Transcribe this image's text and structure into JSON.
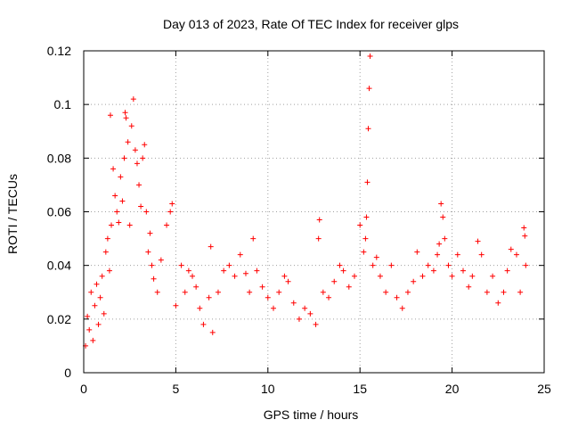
{
  "chart_data": {
    "type": "scatter",
    "title": "Day 013 of 2023, Rate Of TEC Index for receiver glps",
    "xlabel": "GPS time / hours",
    "ylabel": "ROTI / TECUs",
    "xlim": [
      0,
      25
    ],
    "ylim": [
      0,
      0.12
    ],
    "x_ticks": [
      0,
      5,
      10,
      15,
      20,
      25
    ],
    "x_tick_labels": [
      "0",
      "5",
      "10",
      "15",
      "20",
      "25"
    ],
    "y_ticks": [
      0,
      0.02,
      0.04,
      0.06,
      0.08,
      0.1,
      0.12
    ],
    "y_tick_labels": [
      "0",
      "0.02",
      "0.04",
      "0.06",
      "0.08",
      "0.1",
      "0.12"
    ],
    "grid": true,
    "marker": "+",
    "color": "#ff0000",
    "series": [
      {
        "name": "ROTI",
        "points": [
          [
            0.1,
            0.01
          ],
          [
            0.2,
            0.021
          ],
          [
            0.3,
            0.016
          ],
          [
            0.4,
            0.03
          ],
          [
            0.5,
            0.012
          ],
          [
            0.6,
            0.025
          ],
          [
            0.7,
            0.033
          ],
          [
            0.8,
            0.018
          ],
          [
            0.9,
            0.028
          ],
          [
            1.0,
            0.036
          ],
          [
            1.1,
            0.022
          ],
          [
            1.2,
            0.045
          ],
          [
            1.3,
            0.05
          ],
          [
            1.4,
            0.038
          ],
          [
            1.45,
            0.096
          ],
          [
            1.5,
            0.055
          ],
          [
            1.6,
            0.076
          ],
          [
            1.7,
            0.066
          ],
          [
            1.8,
            0.06
          ],
          [
            1.9,
            0.056
          ],
          [
            2.0,
            0.073
          ],
          [
            2.1,
            0.064
          ],
          [
            2.2,
            0.08
          ],
          [
            2.25,
            0.097
          ],
          [
            2.3,
            0.095
          ],
          [
            2.4,
            0.086
          ],
          [
            2.5,
            0.055
          ],
          [
            2.6,
            0.092
          ],
          [
            2.7,
            0.102
          ],
          [
            2.8,
            0.083
          ],
          [
            2.9,
            0.078
          ],
          [
            3.0,
            0.07
          ],
          [
            3.1,
            0.062
          ],
          [
            3.2,
            0.08
          ],
          [
            3.3,
            0.085
          ],
          [
            3.4,
            0.06
          ],
          [
            3.5,
            0.045
          ],
          [
            3.6,
            0.052
          ],
          [
            3.7,
            0.04
          ],
          [
            3.8,
            0.035
          ],
          [
            4.0,
            0.03
          ],
          [
            4.2,
            0.042
          ],
          [
            4.5,
            0.055
          ],
          [
            4.7,
            0.06
          ],
          [
            4.8,
            0.063
          ],
          [
            5.0,
            0.025
          ],
          [
            5.3,
            0.04
          ],
          [
            5.5,
            0.03
          ],
          [
            5.7,
            0.038
          ],
          [
            5.9,
            0.036
          ],
          [
            6.1,
            0.032
          ],
          [
            6.3,
            0.024
          ],
          [
            6.5,
            0.018
          ],
          [
            6.8,
            0.028
          ],
          [
            6.9,
            0.047
          ],
          [
            7.0,
            0.015
          ],
          [
            7.3,
            0.03
          ],
          [
            7.6,
            0.038
          ],
          [
            7.9,
            0.04
          ],
          [
            8.2,
            0.036
          ],
          [
            8.5,
            0.044
          ],
          [
            8.8,
            0.037
          ],
          [
            9.0,
            0.03
          ],
          [
            9.2,
            0.05
          ],
          [
            9.4,
            0.038
          ],
          [
            9.7,
            0.032
          ],
          [
            10.0,
            0.028
          ],
          [
            10.3,
            0.024
          ],
          [
            10.6,
            0.03
          ],
          [
            10.9,
            0.036
          ],
          [
            11.1,
            0.034
          ],
          [
            11.4,
            0.026
          ],
          [
            11.7,
            0.02
          ],
          [
            12.0,
            0.024
          ],
          [
            12.3,
            0.022
          ],
          [
            12.6,
            0.018
          ],
          [
            12.75,
            0.05
          ],
          [
            12.8,
            0.057
          ],
          [
            13.0,
            0.03
          ],
          [
            13.3,
            0.028
          ],
          [
            13.6,
            0.034
          ],
          [
            13.9,
            0.04
          ],
          [
            14.1,
            0.038
          ],
          [
            14.4,
            0.032
          ],
          [
            14.7,
            0.036
          ],
          [
            15.0,
            0.055
          ],
          [
            15.2,
            0.045
          ],
          [
            15.3,
            0.05
          ],
          [
            15.35,
            0.058
          ],
          [
            15.4,
            0.071
          ],
          [
            15.45,
            0.091
          ],
          [
            15.5,
            0.106
          ],
          [
            15.55,
            0.118
          ],
          [
            15.7,
            0.04
          ],
          [
            15.9,
            0.043
          ],
          [
            16.1,
            0.036
          ],
          [
            16.4,
            0.03
          ],
          [
            16.7,
            0.04
          ],
          [
            17.0,
            0.028
          ],
          [
            17.3,
            0.024
          ],
          [
            17.6,
            0.03
          ],
          [
            17.9,
            0.034
          ],
          [
            18.1,
            0.045
          ],
          [
            18.4,
            0.036
          ],
          [
            18.7,
            0.04
          ],
          [
            19.0,
            0.038
          ],
          [
            19.2,
            0.044
          ],
          [
            19.3,
            0.048
          ],
          [
            19.4,
            0.063
          ],
          [
            19.5,
            0.058
          ],
          [
            19.6,
            0.05
          ],
          [
            19.8,
            0.04
          ],
          [
            20.0,
            0.036
          ],
          [
            20.3,
            0.044
          ],
          [
            20.6,
            0.038
          ],
          [
            20.9,
            0.032
          ],
          [
            21.1,
            0.036
          ],
          [
            21.4,
            0.049
          ],
          [
            21.6,
            0.044
          ],
          [
            21.9,
            0.03
          ],
          [
            22.2,
            0.036
          ],
          [
            22.5,
            0.026
          ],
          [
            22.8,
            0.03
          ],
          [
            23.0,
            0.038
          ],
          [
            23.2,
            0.046
          ],
          [
            23.5,
            0.044
          ],
          [
            23.7,
            0.03
          ],
          [
            23.9,
            0.054
          ],
          [
            23.95,
            0.051
          ],
          [
            24.0,
            0.04
          ]
        ]
      }
    ]
  }
}
